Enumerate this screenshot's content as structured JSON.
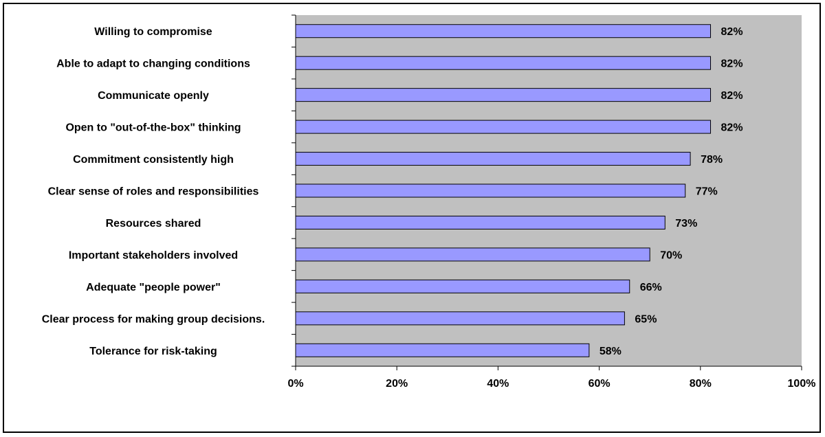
{
  "chart_data": {
    "type": "bar",
    "orientation": "horizontal",
    "categories": [
      "Willing to compromise",
      "Able to adapt to changing conditions",
      "Communicate openly",
      "Open to \"out-of-the-box\" thinking",
      "Commitment consistently high",
      "Clear sense of roles and responsibilities",
      "Resources shared",
      "Important stakeholders involved",
      "Adequate \"people power\"",
      "Clear process for making group decisions.",
      "Tolerance for risk-taking"
    ],
    "values": [
      82,
      82,
      82,
      82,
      78,
      77,
      73,
      70,
      66,
      65,
      58
    ],
    "data_labels": [
      "82%",
      "82%",
      "82%",
      "82%",
      "78%",
      "77%",
      "73%",
      "70%",
      "66%",
      "65%",
      "58%"
    ],
    "x_ticks": [
      "0%",
      "20%",
      "40%",
      "60%",
      "80%",
      "100%"
    ],
    "xlim": [
      0,
      100
    ],
    "title": "",
    "xlabel": "",
    "ylabel": "",
    "grid": false,
    "legend": "none",
    "colors": {
      "bar_fill": "#9999ff",
      "bar_stroke": "#000000",
      "plot_background": "#c0c0c0",
      "axis": "#000000"
    }
  }
}
